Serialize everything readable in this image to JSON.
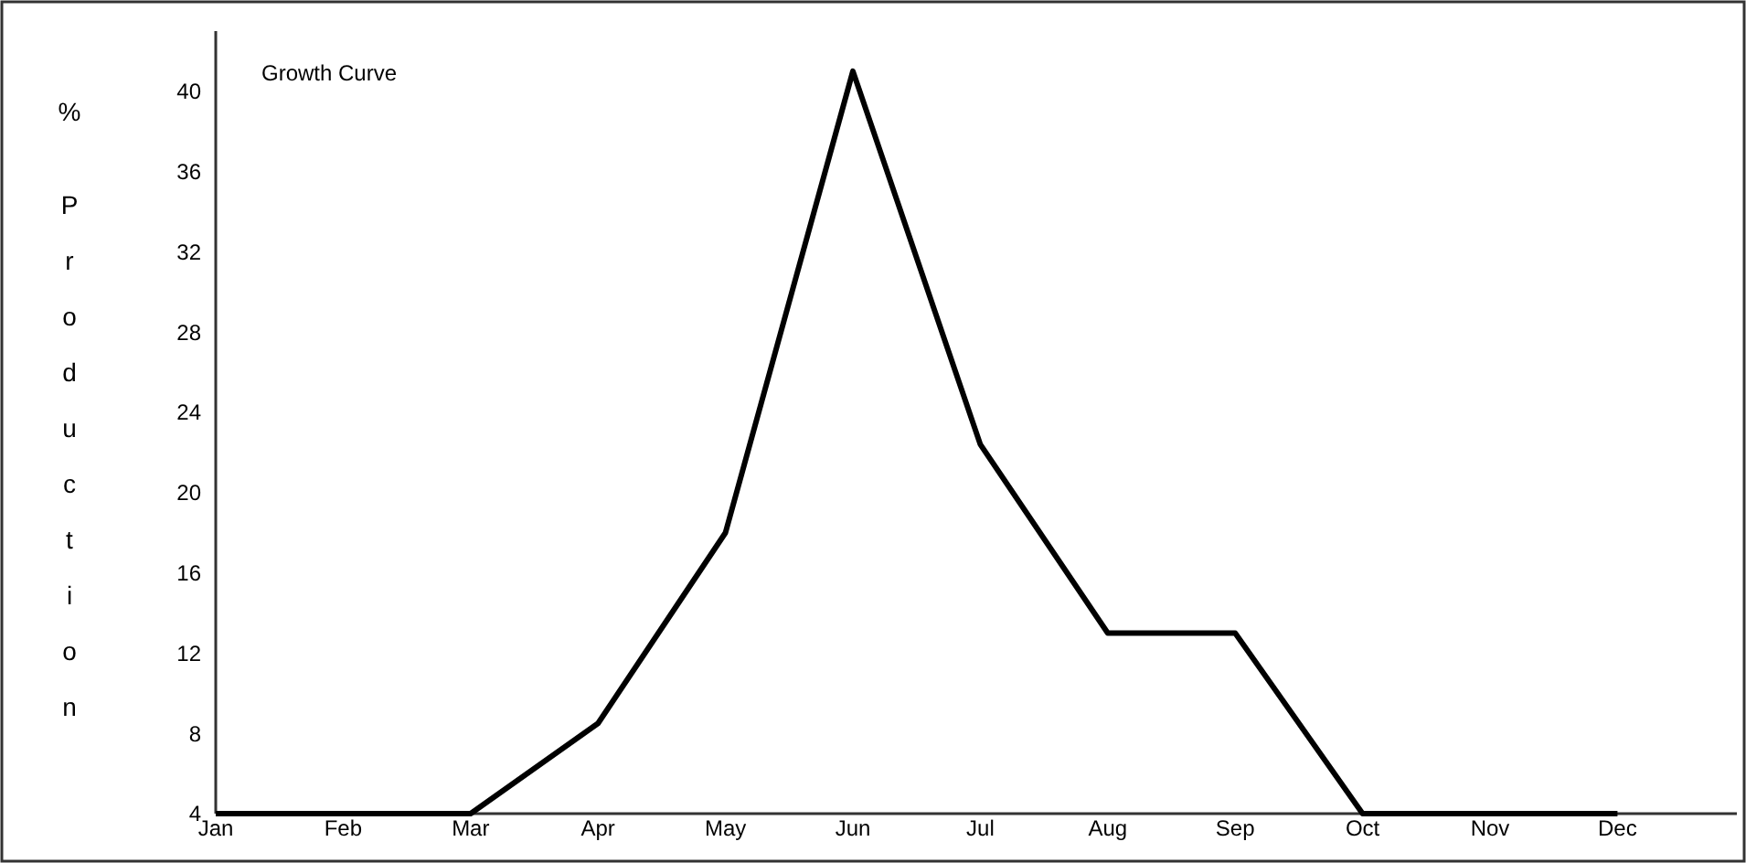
{
  "chart_data": {
    "type": "line",
    "title": "Growth Curve",
    "ylabel": "% Production",
    "categories": [
      "Jan",
      "Feb",
      "Mar",
      "Apr",
      "May",
      "Jun",
      "Jul",
      "Aug",
      "Sep",
      "Oct",
      "Nov",
      "Dec"
    ],
    "series": [
      {
        "color": "#000000",
        "values": [
          4,
          4,
          4,
          8.5,
          18,
          41,
          22.4,
          13,
          13,
          4,
          4,
          4
        ]
      }
    ],
    "ylim": [
      4,
      43
    ],
    "yticks": [
      4,
      8,
      12,
      16,
      20,
      24,
      28,
      32,
      36,
      40
    ],
    "marker": "none",
    "line_style": "solid"
  }
}
